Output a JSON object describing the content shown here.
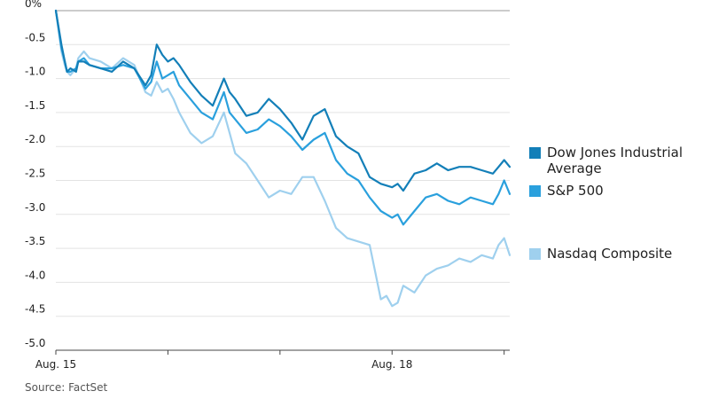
{
  "chart_data": {
    "type": "line",
    "title": "",
    "xlabel": "",
    "ylabel": "",
    "ylim": [
      -5.0,
      0
    ],
    "y_ticks": [
      "0%",
      "-0.5",
      "-1.0",
      "-1.5",
      "-2.0",
      "-2.5",
      "-3.0",
      "-3.5",
      "-4.0",
      "-4.5",
      "-5.0"
    ],
    "y_tick_values": [
      0,
      -0.5,
      -1.0,
      -1.5,
      -2.0,
      -2.5,
      -3.0,
      -3.5,
      -4.0,
      -4.5,
      -5.0
    ],
    "x_ticks": [
      "Aug. 15",
      "",
      "",
      "Aug. 18",
      ""
    ],
    "x_tick_positions": [
      0,
      1,
      2,
      3,
      4
    ],
    "x_range": [
      0,
      4.05
    ],
    "grid": "horizontal",
    "legend_position": "right",
    "series": [
      {
        "name": "Dow Jones Industrial Average",
        "color": "#137fb8",
        "x": [
          0,
          0.05,
          0.08,
          0.1,
          0.13,
          0.18,
          0.2,
          0.25,
          0.3,
          0.4,
          0.5,
          0.6,
          0.7,
          0.8,
          0.85,
          0.9,
          0.95,
          1.0,
          1.05,
          1.1,
          1.2,
          1.3,
          1.4,
          1.5,
          1.55,
          1.6,
          1.7,
          1.8,
          1.9,
          2.0,
          2.1,
          2.2,
          2.3,
          2.4,
          2.5,
          2.6,
          2.7,
          2.8,
          2.9,
          3.0,
          3.05,
          3.1,
          3.2,
          3.3,
          3.4,
          3.5,
          3.6,
          3.7,
          3.8,
          3.9,
          3.95,
          4.0,
          4.05
        ],
        "values": [
          0,
          -0.5,
          -0.75,
          -0.9,
          -0.85,
          -0.9,
          -0.75,
          -0.75,
          -0.8,
          -0.85,
          -0.9,
          -0.75,
          -0.85,
          -1.1,
          -0.95,
          -0.5,
          -0.65,
          -0.75,
          -0.7,
          -0.8,
          -1.05,
          -1.25,
          -1.4,
          -1.0,
          -1.2,
          -1.3,
          -1.55,
          -1.5,
          -1.3,
          -1.45,
          -1.65,
          -1.9,
          -1.55,
          -1.45,
          -1.85,
          -2.0,
          -2.1,
          -2.45,
          -2.55,
          -2.6,
          -2.55,
          -2.65,
          -2.4,
          -2.35,
          -2.25,
          -2.35,
          -2.3,
          -2.3,
          -2.35,
          -2.4,
          -2.3,
          -2.2,
          -2.3
        ]
      },
      {
        "name": "S&P 500",
        "color": "#2aa0dd",
        "x": [
          0,
          0.05,
          0.08,
          0.1,
          0.13,
          0.18,
          0.2,
          0.25,
          0.3,
          0.4,
          0.5,
          0.6,
          0.7,
          0.8,
          0.85,
          0.9,
          0.95,
          1.0,
          1.05,
          1.1,
          1.2,
          1.3,
          1.4,
          1.5,
          1.55,
          1.6,
          1.7,
          1.8,
          1.9,
          2.0,
          2.1,
          2.2,
          2.3,
          2.4,
          2.5,
          2.6,
          2.7,
          2.8,
          2.9,
          3.0,
          3.05,
          3.1,
          3.2,
          3.3,
          3.4,
          3.5,
          3.6,
          3.7,
          3.8,
          3.9,
          3.95,
          4.0,
          4.05
        ],
        "values": [
          0,
          -0.55,
          -0.75,
          -0.9,
          -0.9,
          -0.85,
          -0.75,
          -0.7,
          -0.8,
          -0.85,
          -0.85,
          -0.8,
          -0.85,
          -1.15,
          -1.05,
          -0.75,
          -1.0,
          -0.95,
          -0.9,
          -1.1,
          -1.3,
          -1.5,
          -1.6,
          -1.2,
          -1.5,
          -1.6,
          -1.8,
          -1.75,
          -1.6,
          -1.7,
          -1.85,
          -2.05,
          -1.9,
          -1.8,
          -2.2,
          -2.4,
          -2.5,
          -2.75,
          -2.95,
          -3.05,
          -3.0,
          -3.15,
          -2.95,
          -2.75,
          -2.7,
          -2.8,
          -2.85,
          -2.75,
          -2.8,
          -2.85,
          -2.7,
          -2.5,
          -2.7
        ]
      },
      {
        "name": "Nasdaq Composite",
        "color": "#9fd0ee",
        "x": [
          0,
          0.05,
          0.08,
          0.1,
          0.13,
          0.18,
          0.2,
          0.25,
          0.3,
          0.4,
          0.5,
          0.6,
          0.7,
          0.8,
          0.85,
          0.9,
          0.95,
          1.0,
          1.05,
          1.1,
          1.2,
          1.3,
          1.4,
          1.5,
          1.55,
          1.6,
          1.7,
          1.8,
          1.9,
          2.0,
          2.1,
          2.2,
          2.3,
          2.4,
          2.5,
          2.6,
          2.7,
          2.8,
          2.9,
          2.95,
          3.0,
          3.05,
          3.1,
          3.2,
          3.3,
          3.4,
          3.5,
          3.6,
          3.7,
          3.8,
          3.9,
          3.95,
          4.0,
          4.05
        ],
        "values": [
          0,
          -0.6,
          -0.8,
          -0.9,
          -0.95,
          -0.85,
          -0.7,
          -0.6,
          -0.7,
          -0.75,
          -0.85,
          -0.7,
          -0.8,
          -1.2,
          -1.25,
          -1.05,
          -1.2,
          -1.15,
          -1.3,
          -1.5,
          -1.8,
          -1.95,
          -1.85,
          -1.5,
          -1.8,
          -2.1,
          -2.25,
          -2.5,
          -2.75,
          -2.65,
          -2.7,
          -2.45,
          -2.45,
          -2.8,
          -3.2,
          -3.35,
          -3.4,
          -3.45,
          -4.25,
          -4.2,
          -4.35,
          -4.3,
          -4.05,
          -4.15,
          -3.9,
          -3.8,
          -3.75,
          -3.65,
          -3.7,
          -3.6,
          -3.65,
          -3.45,
          -3.35,
          -3.6
        ]
      }
    ]
  },
  "source": "Source: FactSet"
}
